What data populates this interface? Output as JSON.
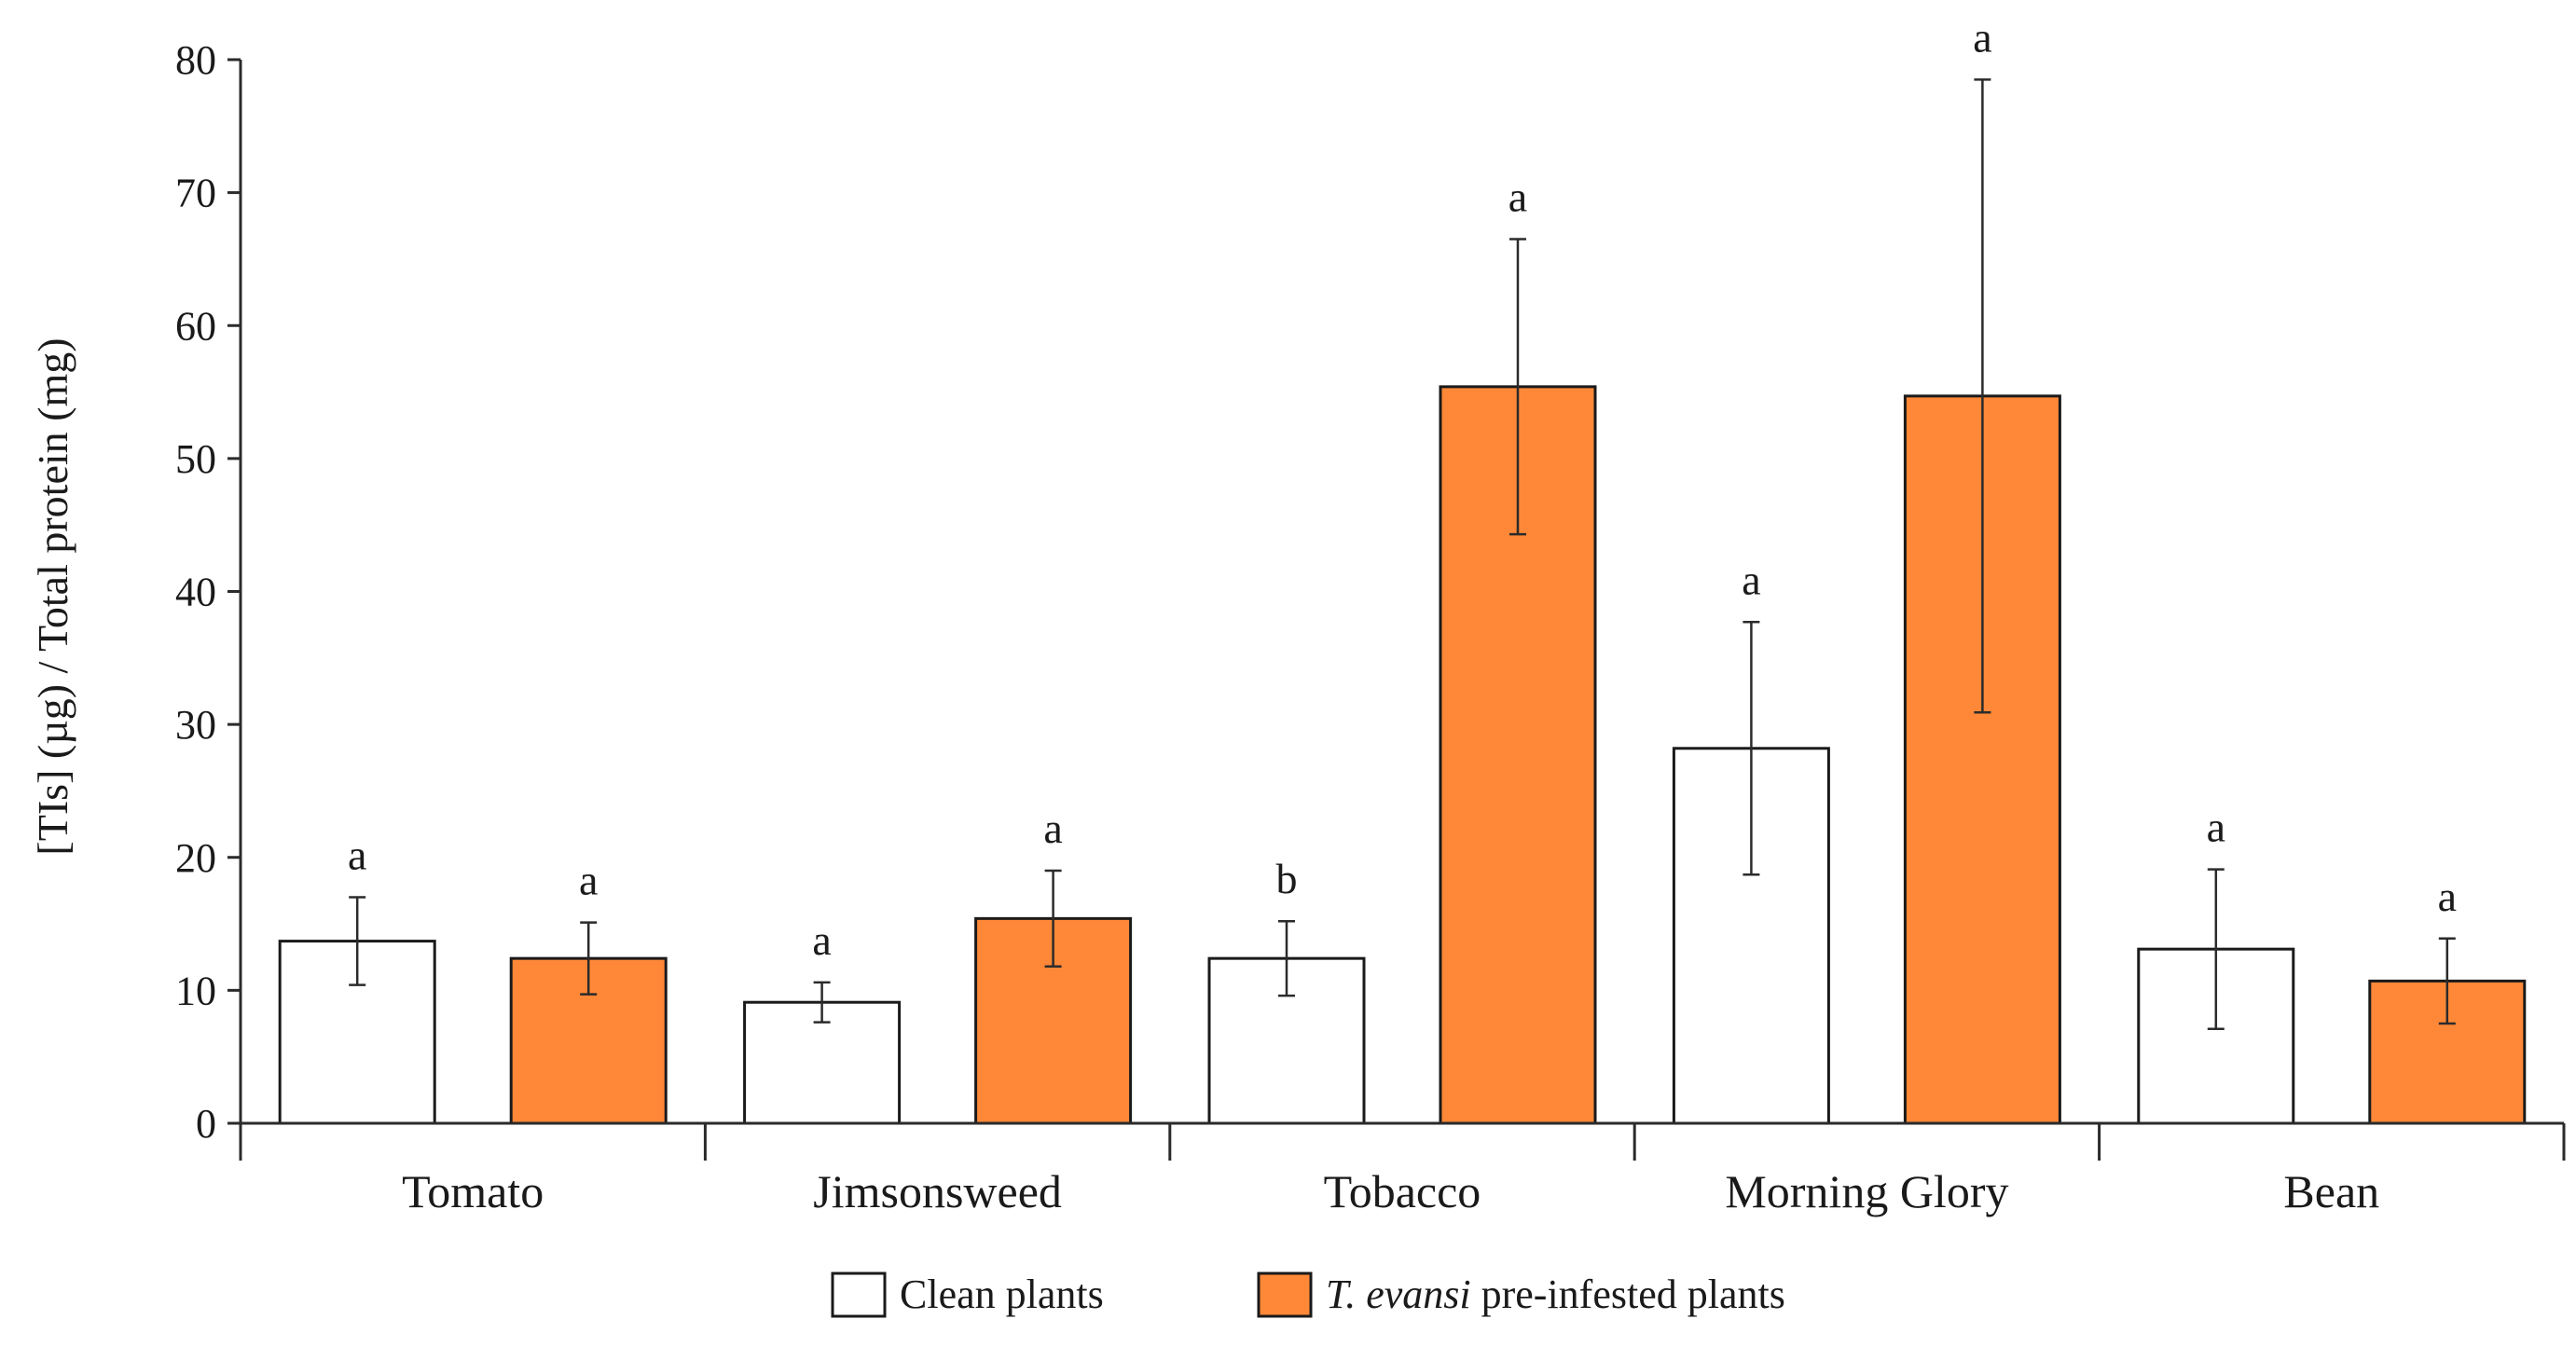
{
  "chart_data": {
    "type": "bar",
    "title": "",
    "xlabel": "",
    "ylabel": "[TIs] (µg) / Total protein (mg)",
    "ylim": [
      0,
      80
    ],
    "yticks": [
      0,
      10,
      20,
      30,
      40,
      50,
      60,
      70,
      80
    ],
    "categories": [
      "Tomato",
      "Jimsonsweed",
      "Tobacco",
      "Morning Glory",
      "Bean"
    ],
    "series": [
      {
        "name": "Clean plants",
        "name_italic_prefix": "",
        "name_rest": "Clean plants",
        "color": "#ffffff",
        "values": [
          13.7,
          9.1,
          12.4,
          28.2,
          13.1
        ],
        "errors": [
          3.3,
          1.5,
          2.8,
          9.5,
          6.0
        ],
        "significance": [
          "a",
          "a",
          "b",
          "a",
          "a"
        ]
      },
      {
        "name": "T. evansi pre-infested plants",
        "name_italic_prefix": "T. evansi",
        "name_rest": " pre-infested plants",
        "color": "#fe8837",
        "values": [
          12.4,
          15.4,
          55.4,
          54.7,
          10.7
        ],
        "errors": [
          2.7,
          3.6,
          11.1,
          23.8,
          3.2
        ],
        "significance": [
          "a",
          "a",
          "a",
          "a",
          "a"
        ]
      }
    ],
    "legend_position": "bottom-center",
    "grid": false
  }
}
